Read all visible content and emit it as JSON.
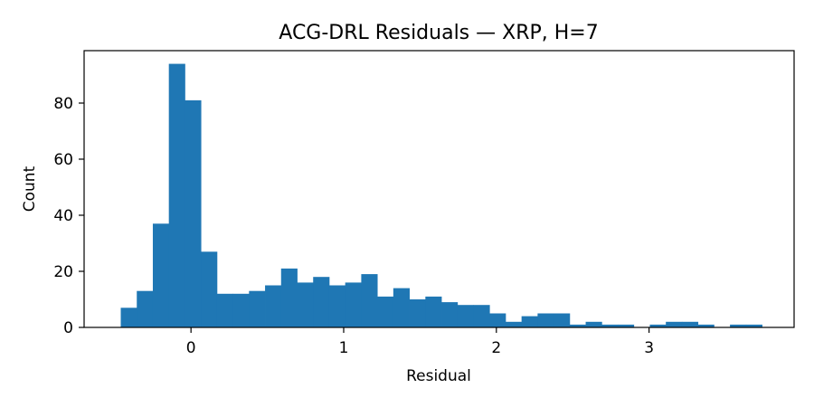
{
  "chart_data": {
    "type": "bar",
    "title": "ACG-DRL Residuals — XRP, H=7",
    "xlabel": "Residual",
    "ylabel": "Count",
    "xlim": [
      -0.7,
      3.95
    ],
    "ylim": [
      0,
      98.7
    ],
    "x_ticks": [
      0,
      1,
      2,
      3
    ],
    "y_ticks": [
      0,
      20,
      40,
      60,
      80
    ],
    "bin_start": -0.46,
    "bin_width": 0.105,
    "values": [
      7,
      13,
      37,
      94,
      81,
      27,
      12,
      12,
      13,
      15,
      21,
      16,
      18,
      15,
      16,
      19,
      11,
      14,
      10,
      11,
      9,
      8,
      8,
      5,
      2,
      4,
      5,
      5,
      1,
      2,
      1,
      1,
      0,
      1,
      2,
      2,
      1,
      0,
      1,
      1
    ],
    "bar_color": "#1f77b4",
    "grid": false,
    "legend": "none"
  }
}
